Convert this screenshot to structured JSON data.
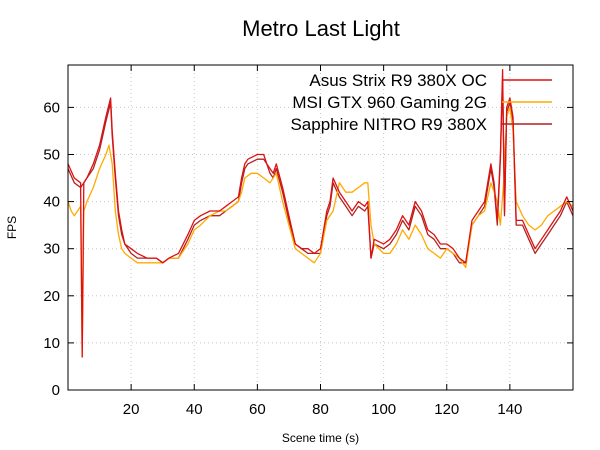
{
  "chart_data": {
    "type": "line",
    "title": "Metro Last Light",
    "xlabel": "Scene time (s)",
    "ylabel": "FPS",
    "xlim": [
      0,
      160
    ],
    "ylim": [
      0,
      69
    ],
    "xticks": [
      20,
      40,
      60,
      80,
      100,
      120,
      140
    ],
    "yticks": [
      0,
      10,
      20,
      30,
      40,
      50,
      60
    ],
    "grid": true,
    "legend_position": "top-right",
    "series": [
      {
        "name": "Asus Strix R9 380X OC",
        "color": "#dd1111",
        "x": [
          0,
          2,
          4,
          4.5,
          5,
          6,
          8,
          10,
          12,
          13.5,
          14,
          15,
          16,
          17,
          18,
          20,
          22,
          25,
          28,
          30,
          32,
          35,
          38,
          40,
          42,
          45,
          48,
          50,
          52,
          54,
          55,
          56,
          57,
          60,
          62,
          63,
          64,
          65,
          66,
          68,
          70,
          72,
          74,
          76,
          78,
          80,
          82,
          83,
          84,
          86,
          88,
          90,
          92,
          94,
          95,
          96,
          97,
          100,
          102,
          104,
          106,
          108,
          110,
          112,
          114,
          116,
          118,
          120,
          122,
          124,
          126,
          128,
          130,
          132,
          134,
          135,
          136,
          137,
          137.7,
          138.3,
          139,
          140,
          141,
          142,
          144,
          146,
          148,
          150,
          152,
          154,
          156,
          158,
          160
        ],
        "y": [
          48,
          45,
          44,
          7,
          44,
          45,
          48,
          52,
          58,
          62,
          55,
          46,
          38,
          34,
          31,
          30,
          29,
          28,
          28,
          27,
          28,
          29,
          33,
          36,
          37,
          38,
          38,
          39,
          40,
          41,
          45,
          48,
          49,
          50,
          50,
          48,
          47,
          46,
          48,
          43,
          37,
          31,
          30,
          30,
          29,
          30,
          38,
          40,
          45,
          42,
          40,
          38,
          40,
          39,
          40,
          28,
          32,
          31,
          32,
          34,
          37,
          35,
          40,
          38,
          34,
          33,
          31,
          31,
          30,
          28,
          27,
          36,
          38,
          40,
          48,
          44,
          36,
          50,
          68,
          38,
          60,
          62,
          58,
          36,
          36,
          33,
          30,
          32,
          34,
          36,
          38,
          41,
          38
        ]
      },
      {
        "name": "MSI GTX 960 Gaming 2G",
        "color": "#ffaa00",
        "x": [
          0,
          1,
          2,
          3,
          4,
          4.5,
          5,
          6,
          8,
          10,
          12,
          13,
          14,
          15,
          16,
          17,
          18,
          20,
          22,
          25,
          28,
          30,
          32,
          35,
          38,
          40,
          42,
          45,
          48,
          50,
          52,
          54,
          55,
          56,
          58,
          60,
          62,
          64,
          66,
          68,
          70,
          72,
          74,
          76,
          78,
          80,
          82,
          84,
          86,
          88,
          90,
          92,
          94,
          95,
          96,
          97,
          100,
          102,
          104,
          106,
          108,
          110,
          112,
          114,
          116,
          118,
          120,
          122,
          124,
          126,
          128,
          130,
          132,
          134,
          136,
          137,
          138,
          139,
          140,
          141,
          142,
          144,
          146,
          148,
          150,
          152,
          154,
          156,
          158,
          160
        ],
        "y": [
          40,
          38,
          37,
          38,
          39,
          7,
          38,
          40,
          43,
          47,
          50,
          52,
          48,
          38,
          33,
          30,
          29,
          28,
          27,
          27,
          27,
          27,
          28,
          28,
          31,
          34,
          35,
          37,
          38,
          38,
          39,
          40,
          42,
          45,
          46,
          46,
          45,
          44,
          46,
          40,
          35,
          30,
          29,
          28,
          27,
          29,
          36,
          38,
          44,
          42,
          42,
          43,
          44,
          44,
          35,
          31,
          29,
          29,
          31,
          34,
          32,
          35,
          33,
          30,
          29,
          28,
          30,
          29,
          28,
          26,
          35,
          37,
          38,
          44,
          40,
          35,
          44,
          58,
          60,
          55,
          40,
          37,
          35,
          34,
          35,
          37,
          38,
          39,
          40,
          39
        ]
      },
      {
        "name": "Sapphire NITRO R9 380X",
        "color": "#b22222",
        "x": [
          0,
          2,
          4,
          5,
          6,
          8,
          10,
          12,
          13.5,
          14,
          15,
          16,
          17,
          18,
          20,
          22,
          25,
          28,
          30,
          32,
          35,
          38,
          40,
          42,
          45,
          48,
          50,
          52,
          54,
          55,
          56,
          57,
          60,
          62,
          63,
          64,
          65,
          66,
          68,
          70,
          72,
          74,
          76,
          78,
          80,
          82,
          83,
          84,
          86,
          88,
          90,
          92,
          94,
          95,
          96,
          97,
          100,
          102,
          104,
          106,
          108,
          110,
          112,
          114,
          116,
          118,
          120,
          122,
          124,
          126,
          128,
          130,
          132,
          134,
          135,
          136,
          137,
          137.7,
          138.3,
          139,
          140,
          141,
          142,
          144,
          146,
          148,
          150,
          152,
          154,
          156,
          158,
          160
        ],
        "y": [
          47,
          44,
          43,
          44,
          45,
          47,
          51,
          57,
          61,
          54,
          45,
          37,
          33,
          31,
          29,
          28,
          28,
          28,
          27,
          28,
          28,
          32,
          35,
          36,
          37,
          37,
          38,
          39,
          40,
          44,
          47,
          48,
          49,
          49,
          48,
          46,
          45,
          47,
          42,
          36,
          31,
          30,
          29,
          29,
          29,
          37,
          39,
          44,
          41,
          39,
          37,
          39,
          38,
          39,
          28,
          31,
          30,
          31,
          33,
          36,
          34,
          39,
          37,
          33,
          32,
          30,
          30,
          29,
          27,
          27,
          35,
          37,
          39,
          47,
          43,
          35,
          49,
          66,
          37,
          59,
          61,
          57,
          35,
          35,
          32,
          29,
          31,
          33,
          35,
          37,
          40,
          37
        ]
      }
    ]
  }
}
